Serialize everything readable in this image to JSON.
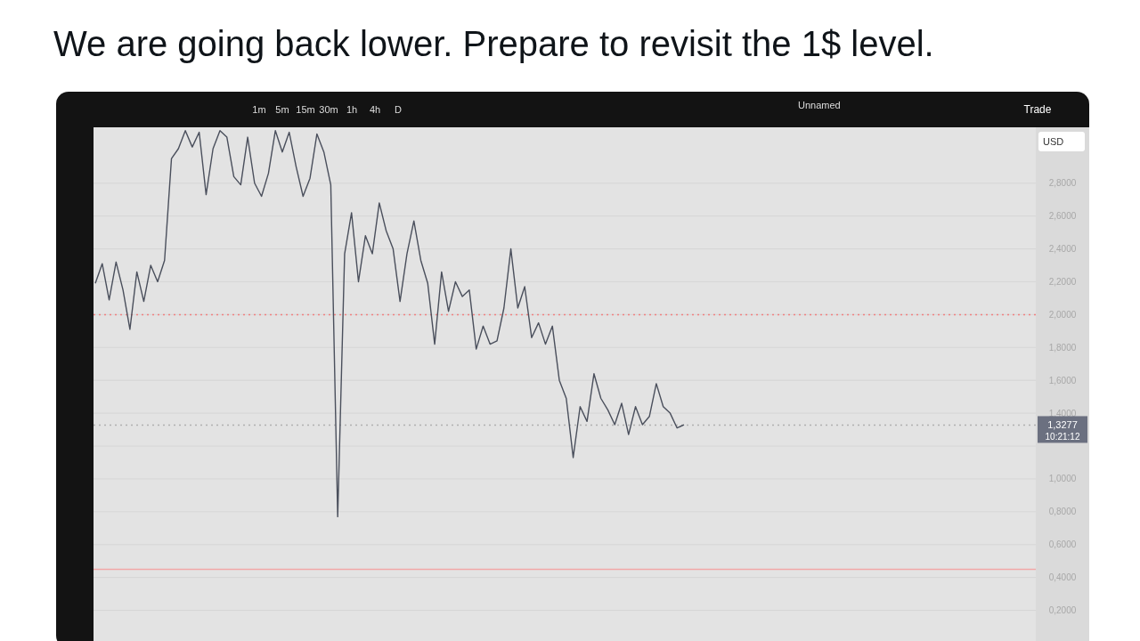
{
  "chart_data": {
    "type": "line",
    "title": "We are going back lower. Prepare to revisit the 1$ level.",
    "categories": [
      null,
      null,
      null,
      null,
      null,
      null,
      null,
      null,
      null,
      null,
      null,
      null,
      null,
      null,
      null,
      null,
      null,
      null,
      null,
      null,
      null,
      null,
      null,
      null,
      null,
      null,
      null,
      null,
      null,
      null,
      null,
      null,
      null,
      null,
      null,
      null,
      null,
      null,
      null,
      null,
      null,
      null,
      null,
      null,
      null,
      null,
      null,
      null,
      null,
      null,
      null,
      null,
      null,
      null,
      null,
      null,
      null,
      null,
      null,
      null,
      null,
      null,
      null,
      null,
      null,
      null,
      null,
      null,
      null,
      null,
      null,
      null,
      null,
      null,
      null,
      null,
      null,
      null,
      null,
      null,
      null,
      null,
      null,
      null,
      null,
      null
    ],
    "series": [
      {
        "color": "#4a4f5c",
        "values": [
          2.19,
          2.31,
          2.09,
          2.32,
          2.15,
          1.91,
          2.26,
          2.08,
          2.3,
          2.2,
          2.33,
          2.95,
          3.01,
          3.12,
          3.02,
          3.11,
          2.73,
          3.01,
          3.12,
          3.08,
          2.84,
          2.79,
          3.08,
          2.8,
          2.72,
          2.86,
          3.12,
          2.99,
          3.11,
          2.9,
          2.72,
          2.83,
          3.1,
          2.99,
          2.79,
          0.77,
          2.37,
          2.62,
          2.2,
          2.48,
          2.37,
          2.68,
          2.51,
          2.4,
          2.08,
          2.37,
          2.57,
          2.33,
          2.19,
          1.82,
          2.26,
          2.02,
          2.2,
          2.11,
          2.15,
          1.79,
          1.93,
          1.82,
          1.84,
          2.04,
          2.4,
          2.04,
          2.17,
          1.86,
          1.95,
          1.82,
          1.93,
          1.6,
          1.49,
          1.13,
          1.44,
          1.35,
          1.64,
          1.49,
          1.42,
          1.33,
          1.46,
          1.27,
          1.44,
          1.33,
          1.38,
          1.58,
          1.44,
          1.4,
          1.31,
          1.33
        ]
      }
    ],
    "ylim": [
      -0.03,
      3.14
    ],
    "yticks": [
      {
        "value": 0.2,
        "label": "0,2000"
      },
      {
        "value": 0.4,
        "label": "0,4000"
      },
      {
        "value": 0.6,
        "label": "0,6000"
      },
      {
        "value": 0.8,
        "label": "0,8000"
      },
      {
        "value": 1.0,
        "label": "1,0000"
      },
      {
        "value": 1.2,
        "label": null
      },
      {
        "value": 1.4,
        "label": "1,4000"
      },
      {
        "value": 1.6,
        "label": "1,6000"
      },
      {
        "value": 1.8,
        "label": "1,8000"
      },
      {
        "value": 2.0,
        "label": "2,0000"
      },
      {
        "value": 2.2,
        "label": "2,2000"
      },
      {
        "value": 2.4,
        "label": "2,4000"
      },
      {
        "value": 2.6,
        "label": "2,6000"
      },
      {
        "value": 2.8,
        "label": "2,8000"
      }
    ],
    "tick_labels": "y",
    "grid": "y",
    "ref_lines": [
      {
        "axis": "y",
        "value": 2.0,
        "color": "#f08080",
        "line_style": "dotted"
      },
      {
        "axis": "y",
        "value": 0.45,
        "color": "#f2a7a7",
        "line_style": "solid"
      },
      {
        "axis": "y",
        "value": 1.3277,
        "label": "1,3277",
        "color": "#b0b0b0",
        "line_style": "dotted"
      }
    ],
    "annotations": [
      "10:21:12",
      "USD",
      "1m",
      "5m",
      "15m",
      "30m",
      "1h",
      "4h",
      "D",
      "Unnamed",
      "Trade"
    ]
  }
}
